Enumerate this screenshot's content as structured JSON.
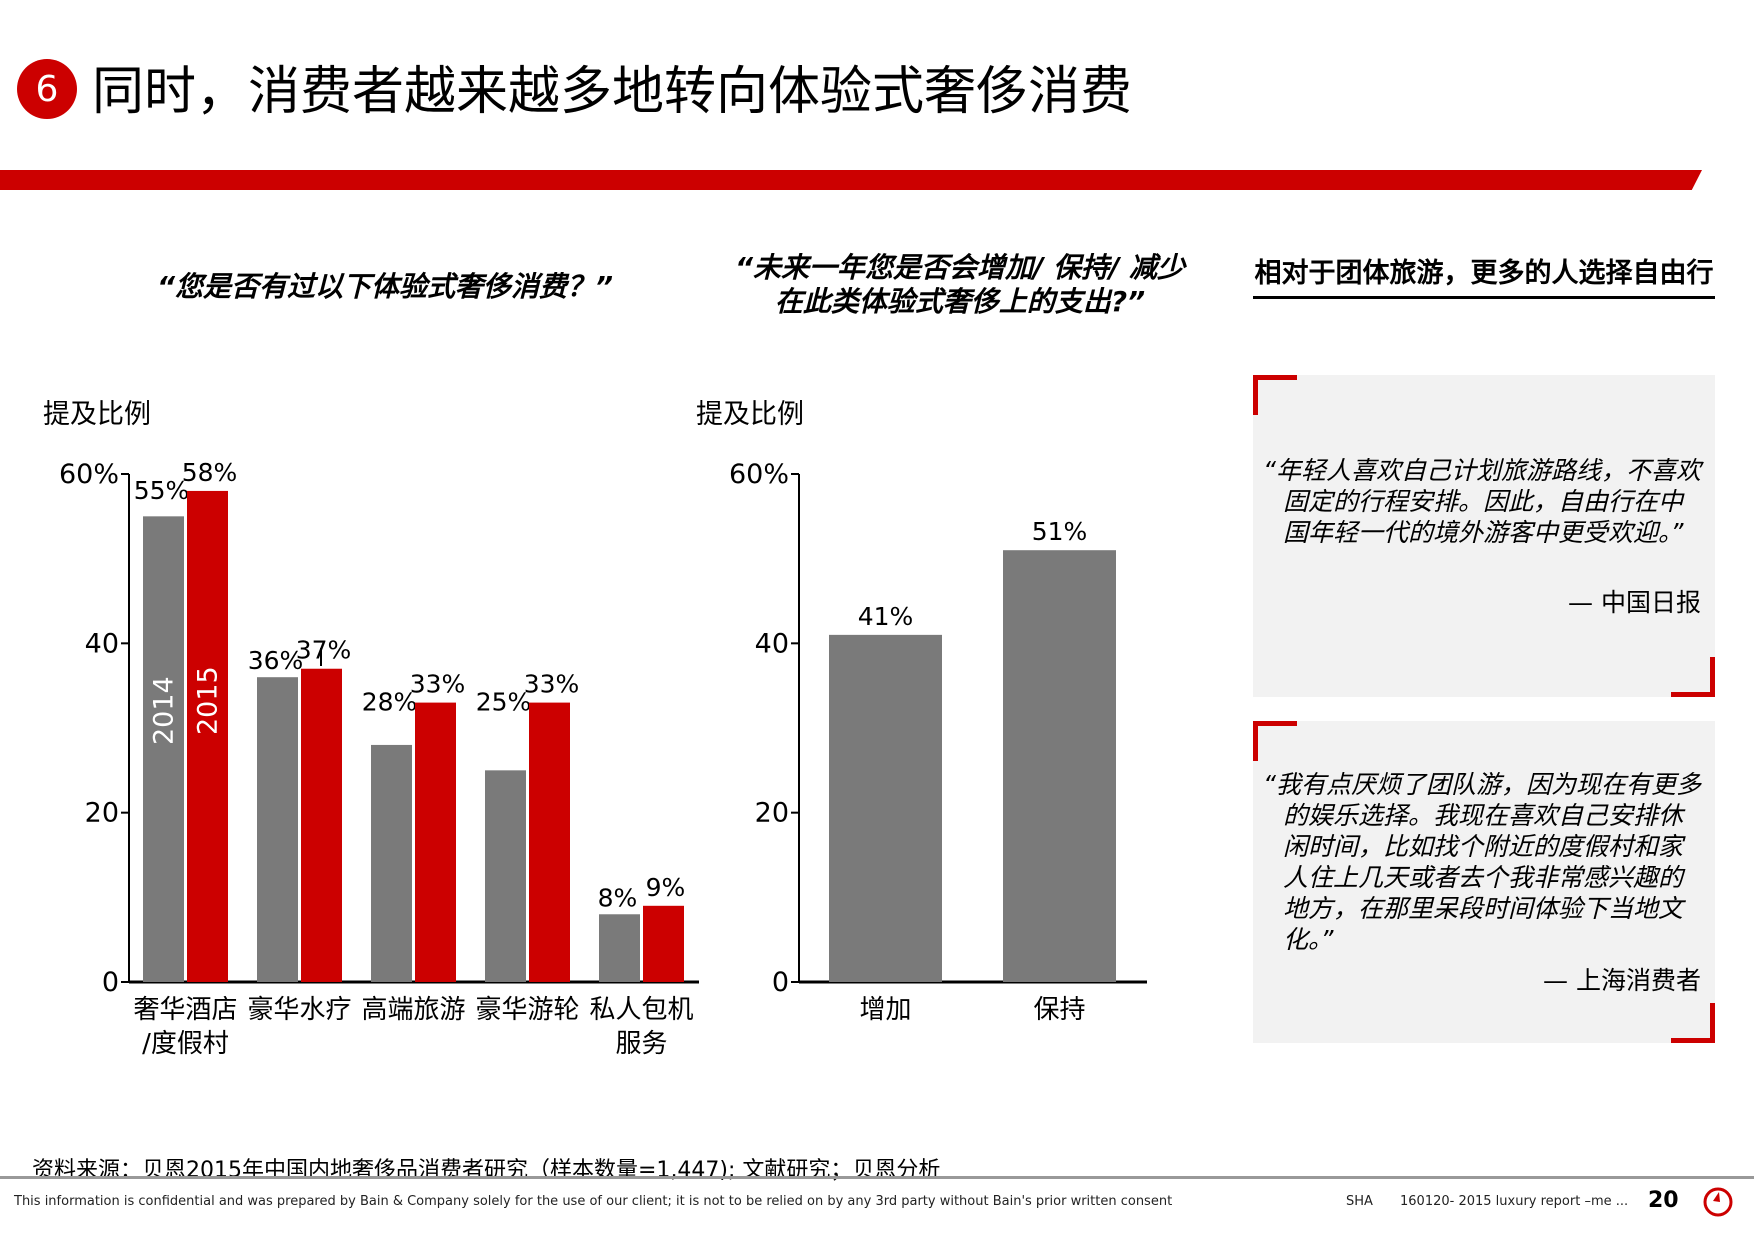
{
  "header": {
    "badge": "6",
    "title": "同时，消费者越来越多地转向体验式奢侈消费",
    "accent_color": "#cc0000"
  },
  "left_question": "“您是否有过以下体验式奢侈消费？”",
  "middle_question": {
    "line1": "“未来一年您是否会增加/ 保持/ 减少",
    "line2": "在此类体验式奢侈上的支出?”"
  },
  "right_heading": "相对于团体旅游，更多的人选择自由行",
  "chart_data": [
    {
      "type": "bar",
      "ylabel": "提及比例",
      "ylim": [
        0,
        60
      ],
      "yticks": [
        "0",
        "20",
        "40",
        "60%"
      ],
      "categories": [
        [
          "奢华酒店",
          "/度假村"
        ],
        [
          "豪华水疗"
        ],
        [
          "高端旅游"
        ],
        [
          "豪华游轮"
        ],
        [
          "私人包机",
          "服务"
        ]
      ],
      "series": [
        {
          "name": "2014",
          "color": "#7a7a7a",
          "values": [
            55,
            36,
            28,
            25,
            8
          ],
          "labels": [
            "55%",
            "36%",
            "28%",
            "25%",
            "8%"
          ]
        },
        {
          "name": "2015",
          "color": "#cc0000",
          "values": [
            58,
            37,
            33,
            33,
            9
          ],
          "labels": [
            "58%",
            "37%",
            "33%",
            "33%",
            "9%"
          ]
        }
      ]
    },
    {
      "type": "bar",
      "ylabel": "提及比例",
      "ylim": [
        0,
        60
      ],
      "yticks": [
        "0",
        "20",
        "40",
        "60%"
      ],
      "categories": [
        [
          "增加"
        ],
        [
          "保持"
        ]
      ],
      "series": [
        {
          "color": "#7a7a7a",
          "values": [
            41,
            51
          ],
          "labels": [
            "41%",
            "51%"
          ]
        }
      ]
    }
  ],
  "quotes": [
    {
      "text": "“年轻人喜欢自己计划旅游路线，不喜欢固定的行程安排。因此，自由行在中国年轻一代的境外游客中更受欢迎。”",
      "author": "— 中国日报"
    },
    {
      "text": "“我有点厌烦了团队游，因为现在有更多的娱乐选择。我现在喜欢自己安排休闲时间，比如找个附近的度假村和家人住上几天或者去个我非常感兴趣的地方，在那里呆段时间体验下当地文化。”",
      "author": "— 上海消费者"
    }
  ],
  "footer": {
    "source": "资料来源：贝恩2015年中国内地奢侈品消费者研究（样本数量=1,447); 文献研究；贝恩分析",
    "confidential": "This information is confidential and was prepared by Bain & Company solely for the use of our client; it is not to be relied on by any 3rd party without Bain's prior written consent",
    "office": "SHA",
    "report": "160120- 2015 luxury report –me ...",
    "page": "20"
  }
}
